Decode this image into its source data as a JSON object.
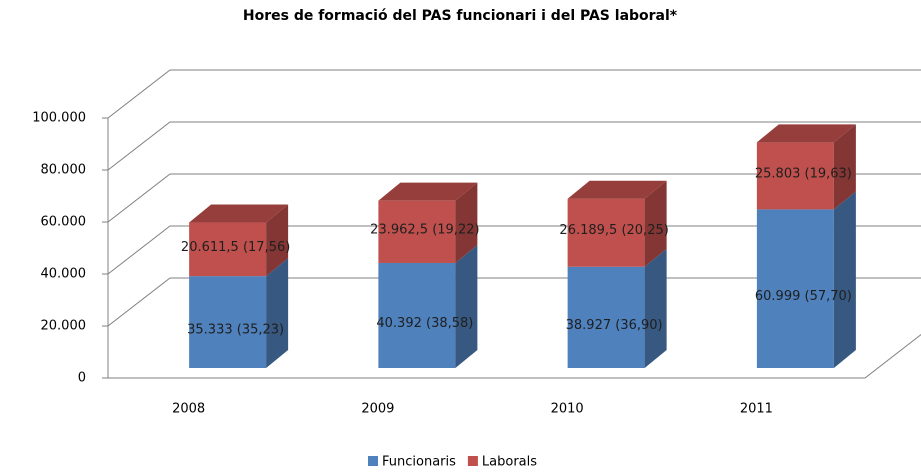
{
  "chart_data": {
    "type": "bar3d_stacked",
    "title": "Hores de formació  del PAS funcionari  i del PAS laboral*",
    "categories": [
      "2008",
      "2009",
      "2010",
      "2011"
    ],
    "series": [
      {
        "name": "Funcionaris",
        "color": "#4f81bd",
        "values": [
          35333,
          40392,
          38927,
          60999
        ],
        "value_labels": [
          "35.333 (35,23)",
          "40.392 (38,58)",
          "38.927 (36,90)",
          "60.999 (57,70)"
        ]
      },
      {
        "name": "Laborals",
        "color": "#c0504d",
        "values": [
          20611.5,
          23962.5,
          26189.5,
          25803
        ],
        "value_labels": [
          "20.611,5 (17,56)",
          "23.962,5 (19,22)",
          "26.189,5 (20,25)",
          "25.803 (19,63)"
        ]
      }
    ],
    "ylim": [
      0,
      100000
    ],
    "yticks": [
      0,
      {
        "value": 20000,
        "label": "20.000"
      },
      {
        "value": 40000,
        "label": "40.000"
      },
      {
        "value": 60000,
        "label": "60.000"
      },
      {
        "value": 80000,
        "label": "80.000"
      },
      {
        "value": 100000,
        "label": "100.000"
      }
    ],
    "grid": true,
    "legend": "bottom"
  }
}
